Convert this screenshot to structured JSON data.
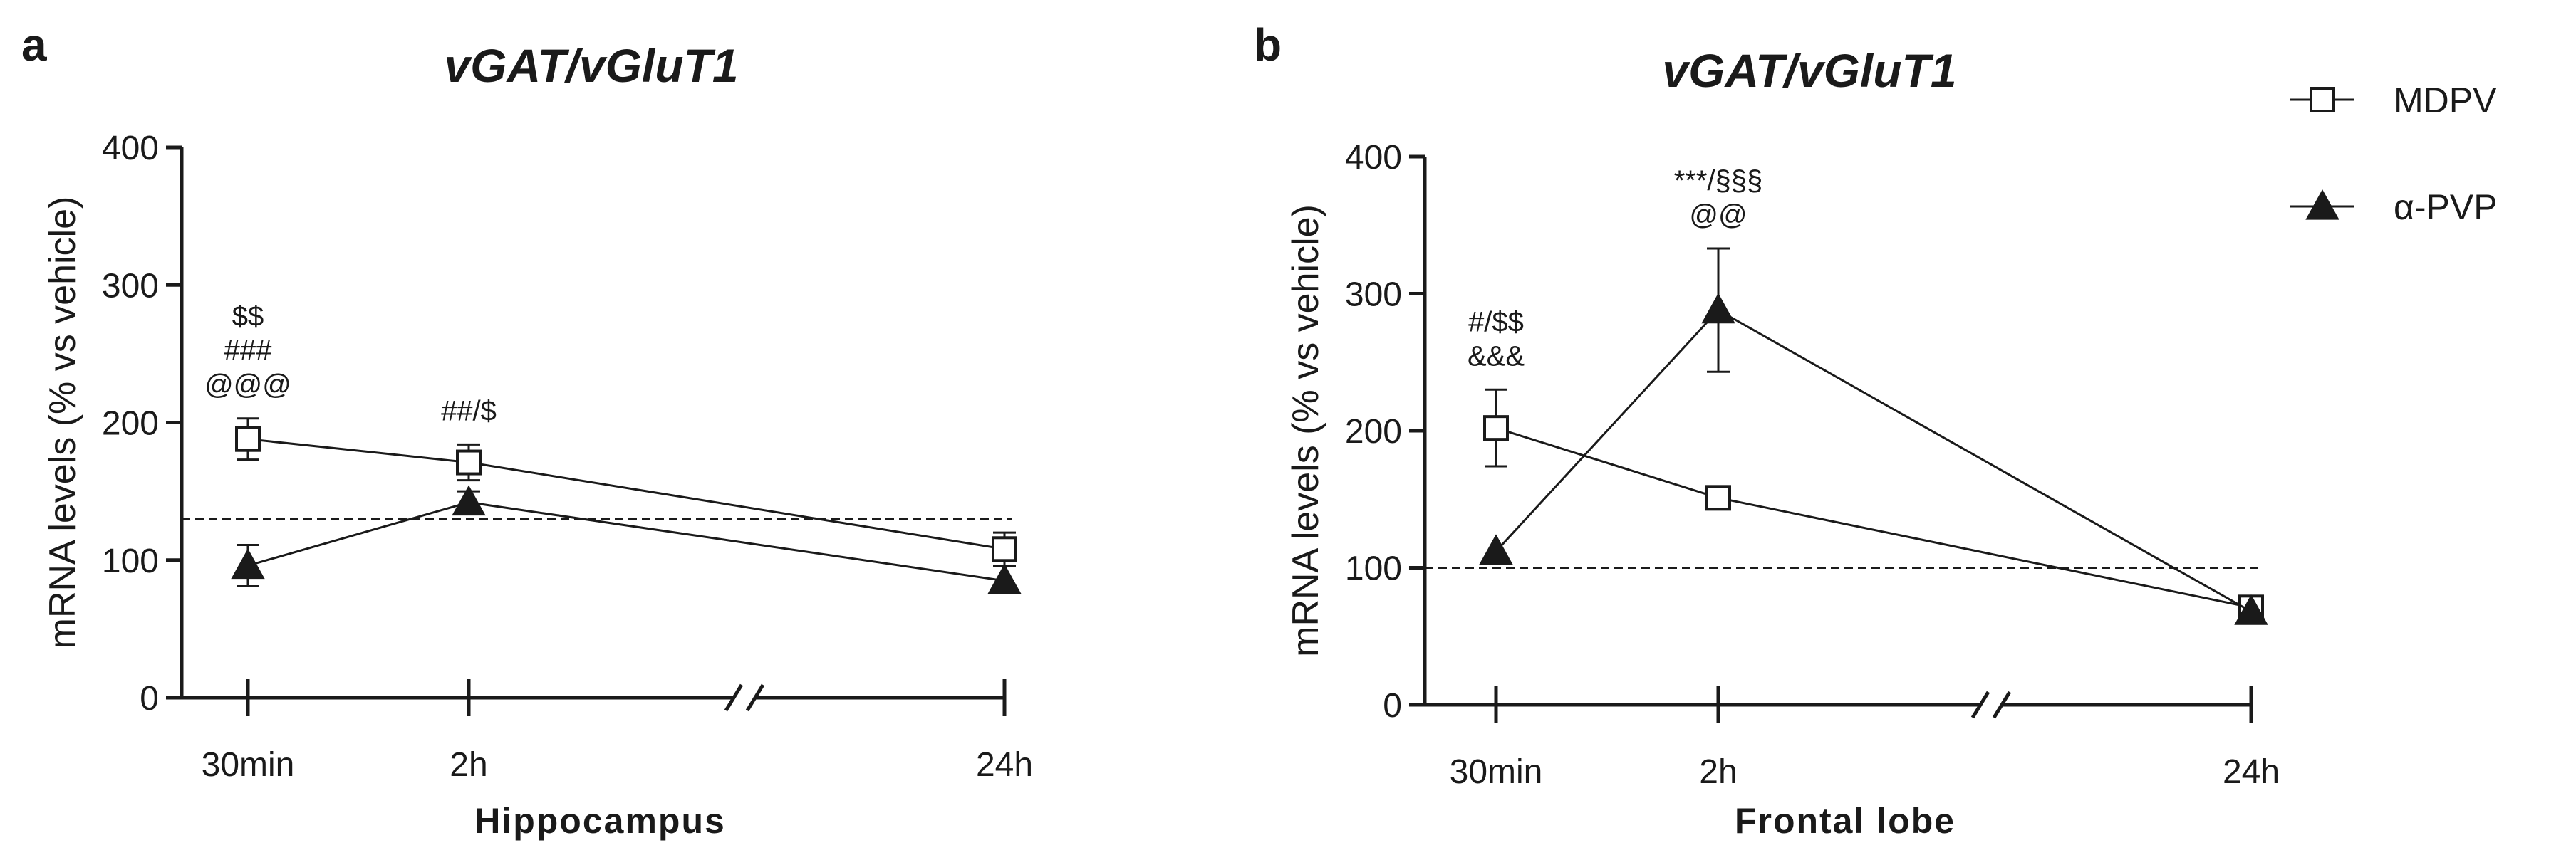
{
  "legend": {
    "items": [
      {
        "name": "MDPV",
        "marker": "open-square"
      },
      {
        "name": "α-PVP",
        "marker": "filled-triangle"
      }
    ]
  },
  "colors": {
    "ink": "#1a1a1a",
    "background": "#ffffff"
  },
  "chart_data": [
    {
      "type": "line",
      "panel": "a",
      "title": "vGAT/vGluT1",
      "xlabel": "Hippocampus",
      "ylabel": "mRNA levels (% vs vehicle)",
      "categories": [
        "30min",
        "2h",
        "24h"
      ],
      "ylim": [
        0,
        400
      ],
      "yticks": [
        0,
        100,
        200,
        300,
        400
      ],
      "axis_break": true,
      "reference_line": 130,
      "series": [
        {
          "name": "MDPV",
          "values": [
            188,
            171,
            108
          ],
          "errors": [
            15,
            13,
            12
          ]
        },
        {
          "name": "α-PVP",
          "values": [
            96,
            142,
            85
          ],
          "errors": [
            15,
            8,
            0
          ]
        }
      ],
      "annotations": [
        {
          "category": "30min",
          "lines": [
            "$$",
            "###",
            "@@@"
          ]
        },
        {
          "category": "2h",
          "lines": [
            "##/$"
          ]
        }
      ]
    },
    {
      "type": "line",
      "panel": "b",
      "title": "vGAT/vGluT1",
      "xlabel": "Frontal lobe",
      "ylabel": "mRNA levels (% vs vehicle)",
      "categories": [
        "30min",
        "2h",
        "24h"
      ],
      "ylim": [
        0,
        400
      ],
      "yticks": [
        0,
        100,
        200,
        300,
        400
      ],
      "axis_break": true,
      "reference_line": 100,
      "series": [
        {
          "name": "MDPV",
          "values": [
            202,
            151,
            71
          ],
          "errors": [
            28,
            0,
            0
          ]
        },
        {
          "name": "α-PVP",
          "values": [
            112,
            288,
            68
          ],
          "errors": [
            0,
            45,
            0
          ]
        }
      ],
      "annotations": [
        {
          "category": "30min",
          "lines": [
            "#/$$",
            "&&&"
          ]
        },
        {
          "category": "2h",
          "lines": [
            "***/§§§",
            "@@"
          ]
        }
      ]
    }
  ]
}
